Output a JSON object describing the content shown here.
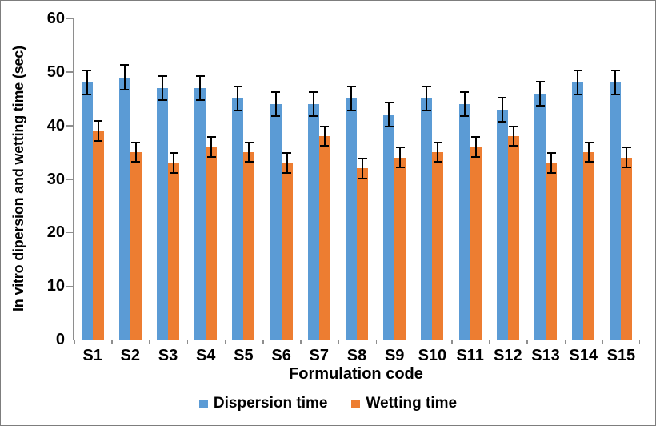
{
  "chart_data": {
    "type": "bar",
    "title": "",
    "xlabel": "Formulation code",
    "ylabel": "In vitro dipersion and wetting time (sec)",
    "ylim": [
      0,
      60
    ],
    "yticks": [
      0,
      10,
      20,
      30,
      40,
      50,
      60
    ],
    "categories": [
      "S1",
      "S2",
      "S3",
      "S4",
      "S5",
      "S6",
      "S7",
      "S8",
      "S9",
      "S10",
      "S11",
      "S12",
      "S13",
      "S14",
      "S15"
    ],
    "series": [
      {
        "name": "Dispersion time",
        "color": "#5B9BD5",
        "values": [
          48,
          49,
          47,
          47,
          45,
          44,
          44,
          45,
          42,
          45,
          44,
          43,
          46,
          48,
          48
        ],
        "error": 2.4
      },
      {
        "name": "Wetting time",
        "color": "#ED7D31",
        "values": [
          39,
          35,
          33,
          36,
          35,
          33,
          38,
          32,
          34,
          35,
          36,
          38,
          33,
          35,
          34
        ],
        "error": 2.0
      }
    ],
    "legend_position": "bottom",
    "grid": false,
    "error_bar_color": "#000000",
    "axis_color": "#8e8e8e",
    "frame_border_color": "#7d7d7d"
  }
}
